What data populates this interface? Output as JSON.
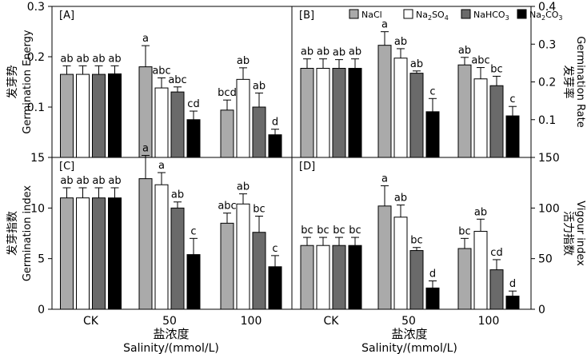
{
  "chart_data": {
    "type": "bar",
    "groups": [
      "CK",
      "50",
      "100"
    ],
    "legend": {
      "labels": [
        "NaCl",
        "Na2SO4",
        "NaHCO3",
        "Na2CO3"
      ],
      "colors": [
        "#aaaaaa",
        "#ffffff",
        "#6a6a6a",
        "#000000"
      ],
      "sub": [
        "",
        "4",
        "3",
        "3"
      ],
      "base": [
        "NaCl",
        "Na2SO",
        "NaHCO",
        "Na2CO"
      ]
    },
    "xaxis": {
      "cn": "盐浓度",
      "en": "Salinity/(mmol/L)"
    },
    "panels": [
      {
        "tag": "[A]",
        "ylabel_cn": "发芽势",
        "ylabel_en": "Germination Energy",
        "ylim": [
          0,
          0.3
        ],
        "ticks": [
          "0.0",
          "0.1",
          "0.2",
          "0.3"
        ],
        "tick_values": [
          0,
          0.1,
          0.2,
          0.3
        ],
        "values": [
          [
            0.165,
            0.165,
            0.165,
            0.166
          ],
          [
            0.18,
            0.138,
            0.13,
            0.075
          ],
          [
            0.094,
            0.155,
            0.1,
            0.045
          ]
        ],
        "errors": [
          [
            0.017,
            0.017,
            0.017,
            0.016
          ],
          [
            0.042,
            0.02,
            0.01,
            0.017
          ],
          [
            0.02,
            0.023,
            0.028,
            0.011
          ]
        ],
        "letters": [
          [
            "ab",
            "ab",
            "ab",
            "ab"
          ],
          [
            "a",
            "abc",
            "abc",
            "cd"
          ],
          [
            "bcd",
            "ab",
            "ab",
            "d"
          ]
        ]
      },
      {
        "tag": "[B]",
        "ylabel_cn": "发芽率",
        "ylabel_en": "Germination Rate",
        "ylim": [
          0,
          0.4
        ],
        "ticks": [
          "0.0",
          "0.1",
          "0.2",
          "0.3",
          "0.4"
        ],
        "tick_values": [
          0,
          0.1,
          0.2,
          0.3,
          0.4
        ],
        "values": [
          [
            0.236,
            0.236,
            0.236,
            0.236
          ],
          [
            0.297,
            0.263,
            0.223,
            0.121
          ],
          [
            0.245,
            0.208,
            0.19,
            0.11
          ]
        ],
        "errors": [
          [
            0.025,
            0.025,
            0.023,
            0.025
          ],
          [
            0.036,
            0.025,
            0.006,
            0.035
          ],
          [
            0.02,
            0.03,
            0.025,
            0.025
          ]
        ],
        "letters": [
          [
            "ab",
            "ab",
            "ab",
            "ab"
          ],
          [
            "a",
            "ab",
            "ab",
            "c"
          ],
          [
            "ab",
            "abc",
            "bc",
            "c"
          ]
        ]
      },
      {
        "tag": "[C]",
        "ylabel_cn": "发芽指数",
        "ylabel_en": "Germination index",
        "ylim": [
          0,
          15
        ],
        "ticks": [
          "0",
          "5",
          "10",
          "15"
        ],
        "tick_values": [
          0,
          5,
          10,
          15
        ],
        "values": [
          [
            11.0,
            11.0,
            11.0,
            11.0
          ],
          [
            12.9,
            12.3,
            10.0,
            5.4
          ],
          [
            8.5,
            10.4,
            7.6,
            4.2
          ]
        ],
        "errors": [
          [
            1.0,
            1.0,
            1.0,
            1.0
          ],
          [
            2.3,
            1.2,
            0.6,
            1.6
          ],
          [
            1.0,
            1.0,
            1.6,
            1.1
          ]
        ],
        "letters": [
          [
            "ab",
            "ab",
            "ab",
            "ab"
          ],
          [
            "a",
            "a",
            "ab",
            "c"
          ],
          [
            "abc",
            "ab",
            "bc",
            "c"
          ]
        ]
      },
      {
        "tag": "[D]",
        "ylabel_cn": "活力指数",
        "ylabel_en": "Vigour index",
        "ylim": [
          0,
          150
        ],
        "ticks": [
          "0",
          "50",
          "100",
          "150"
        ],
        "tick_values": [
          0,
          50,
          100,
          150
        ],
        "values": [
          [
            63,
            63,
            63,
            63
          ],
          [
            102,
            91,
            58,
            21
          ],
          [
            60,
            77,
            39,
            13
          ]
        ],
        "errors": [
          [
            8,
            8,
            8,
            8
          ],
          [
            20,
            12,
            3,
            7
          ],
          [
            10,
            12,
            10,
            5
          ]
        ],
        "letters": [
          [
            "bc",
            "bc",
            "bc",
            "bc"
          ],
          [
            "a",
            "ab",
            "bc",
            "d"
          ],
          [
            "bc",
            "ab",
            "cd",
            "d"
          ]
        ]
      }
    ]
  }
}
